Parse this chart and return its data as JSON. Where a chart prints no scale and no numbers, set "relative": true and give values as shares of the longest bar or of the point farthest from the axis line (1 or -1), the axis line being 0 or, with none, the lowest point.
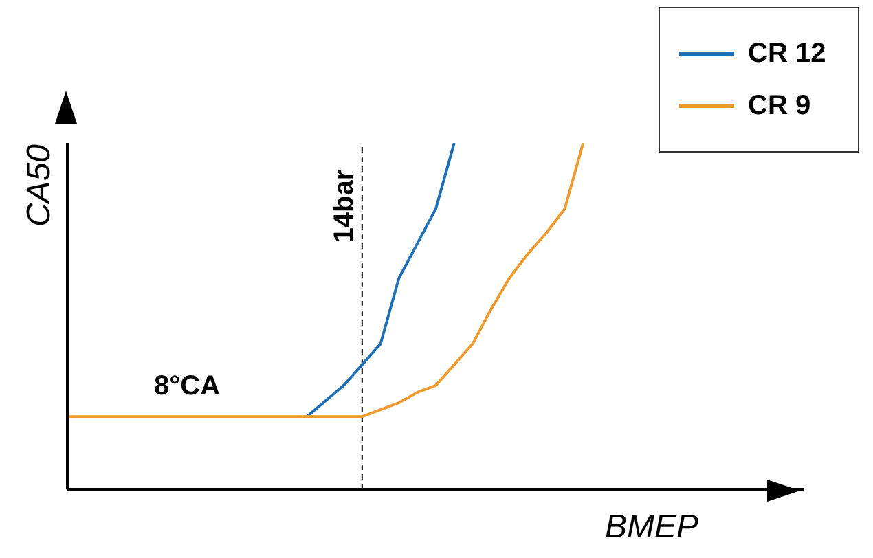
{
  "chart_data": {
    "type": "line",
    "relative": true,
    "xlabel": "BMEP",
    "ylabel": "CA50",
    "legend": "top right",
    "line_style": "solid",
    "marker": "none",
    "categories": [
      null,
      null,
      null,
      null,
      null,
      null,
      null,
      null,
      null,
      null,
      null,
      null,
      null,
      null,
      null,
      null,
      null,
      null,
      null,
      null,
      null,
      null,
      null,
      null,
      null,
      null,
      null,
      null,
      null,
      null,
      null,
      null,
      null,
      null,
      null,
      null,
      null,
      null,
      null,
      null,
      null
    ],
    "series": [
      {
        "name": "CR 12",
        "color": "#1f6fb5",
        "values": [
          null,
          null,
          null,
          null,
          null,
          null,
          null,
          null,
          null,
          null,
          null,
          null,
          null,
          0.21,
          0.255,
          0.3,
          0.36,
          0.42,
          0.61,
          0.71,
          0.81,
          1,
          null,
          null,
          null,
          null,
          null,
          null,
          null,
          null,
          null,
          null,
          null,
          null,
          null,
          null,
          null,
          null,
          null,
          null,
          null
        ]
      },
      {
        "name": "CR 9",
        "color": "#ee9a2e",
        "values": [
          0.21,
          0.21,
          0.21,
          0.21,
          0.21,
          0.21,
          0.21,
          0.21,
          0.21,
          0.21,
          0.21,
          0.21,
          0.21,
          0.21,
          0.21,
          0.21,
          0.21,
          0.23,
          0.25,
          0.28,
          0.3,
          0.36,
          0.42,
          0.52,
          0.61,
          0.68,
          0.74,
          0.81,
          1,
          null,
          null,
          null,
          null,
          null,
          null,
          null,
          null,
          null,
          null,
          null,
          null
        ]
      }
    ],
    "annotations": [
      "8°CA",
      "14bar"
    ]
  }
}
